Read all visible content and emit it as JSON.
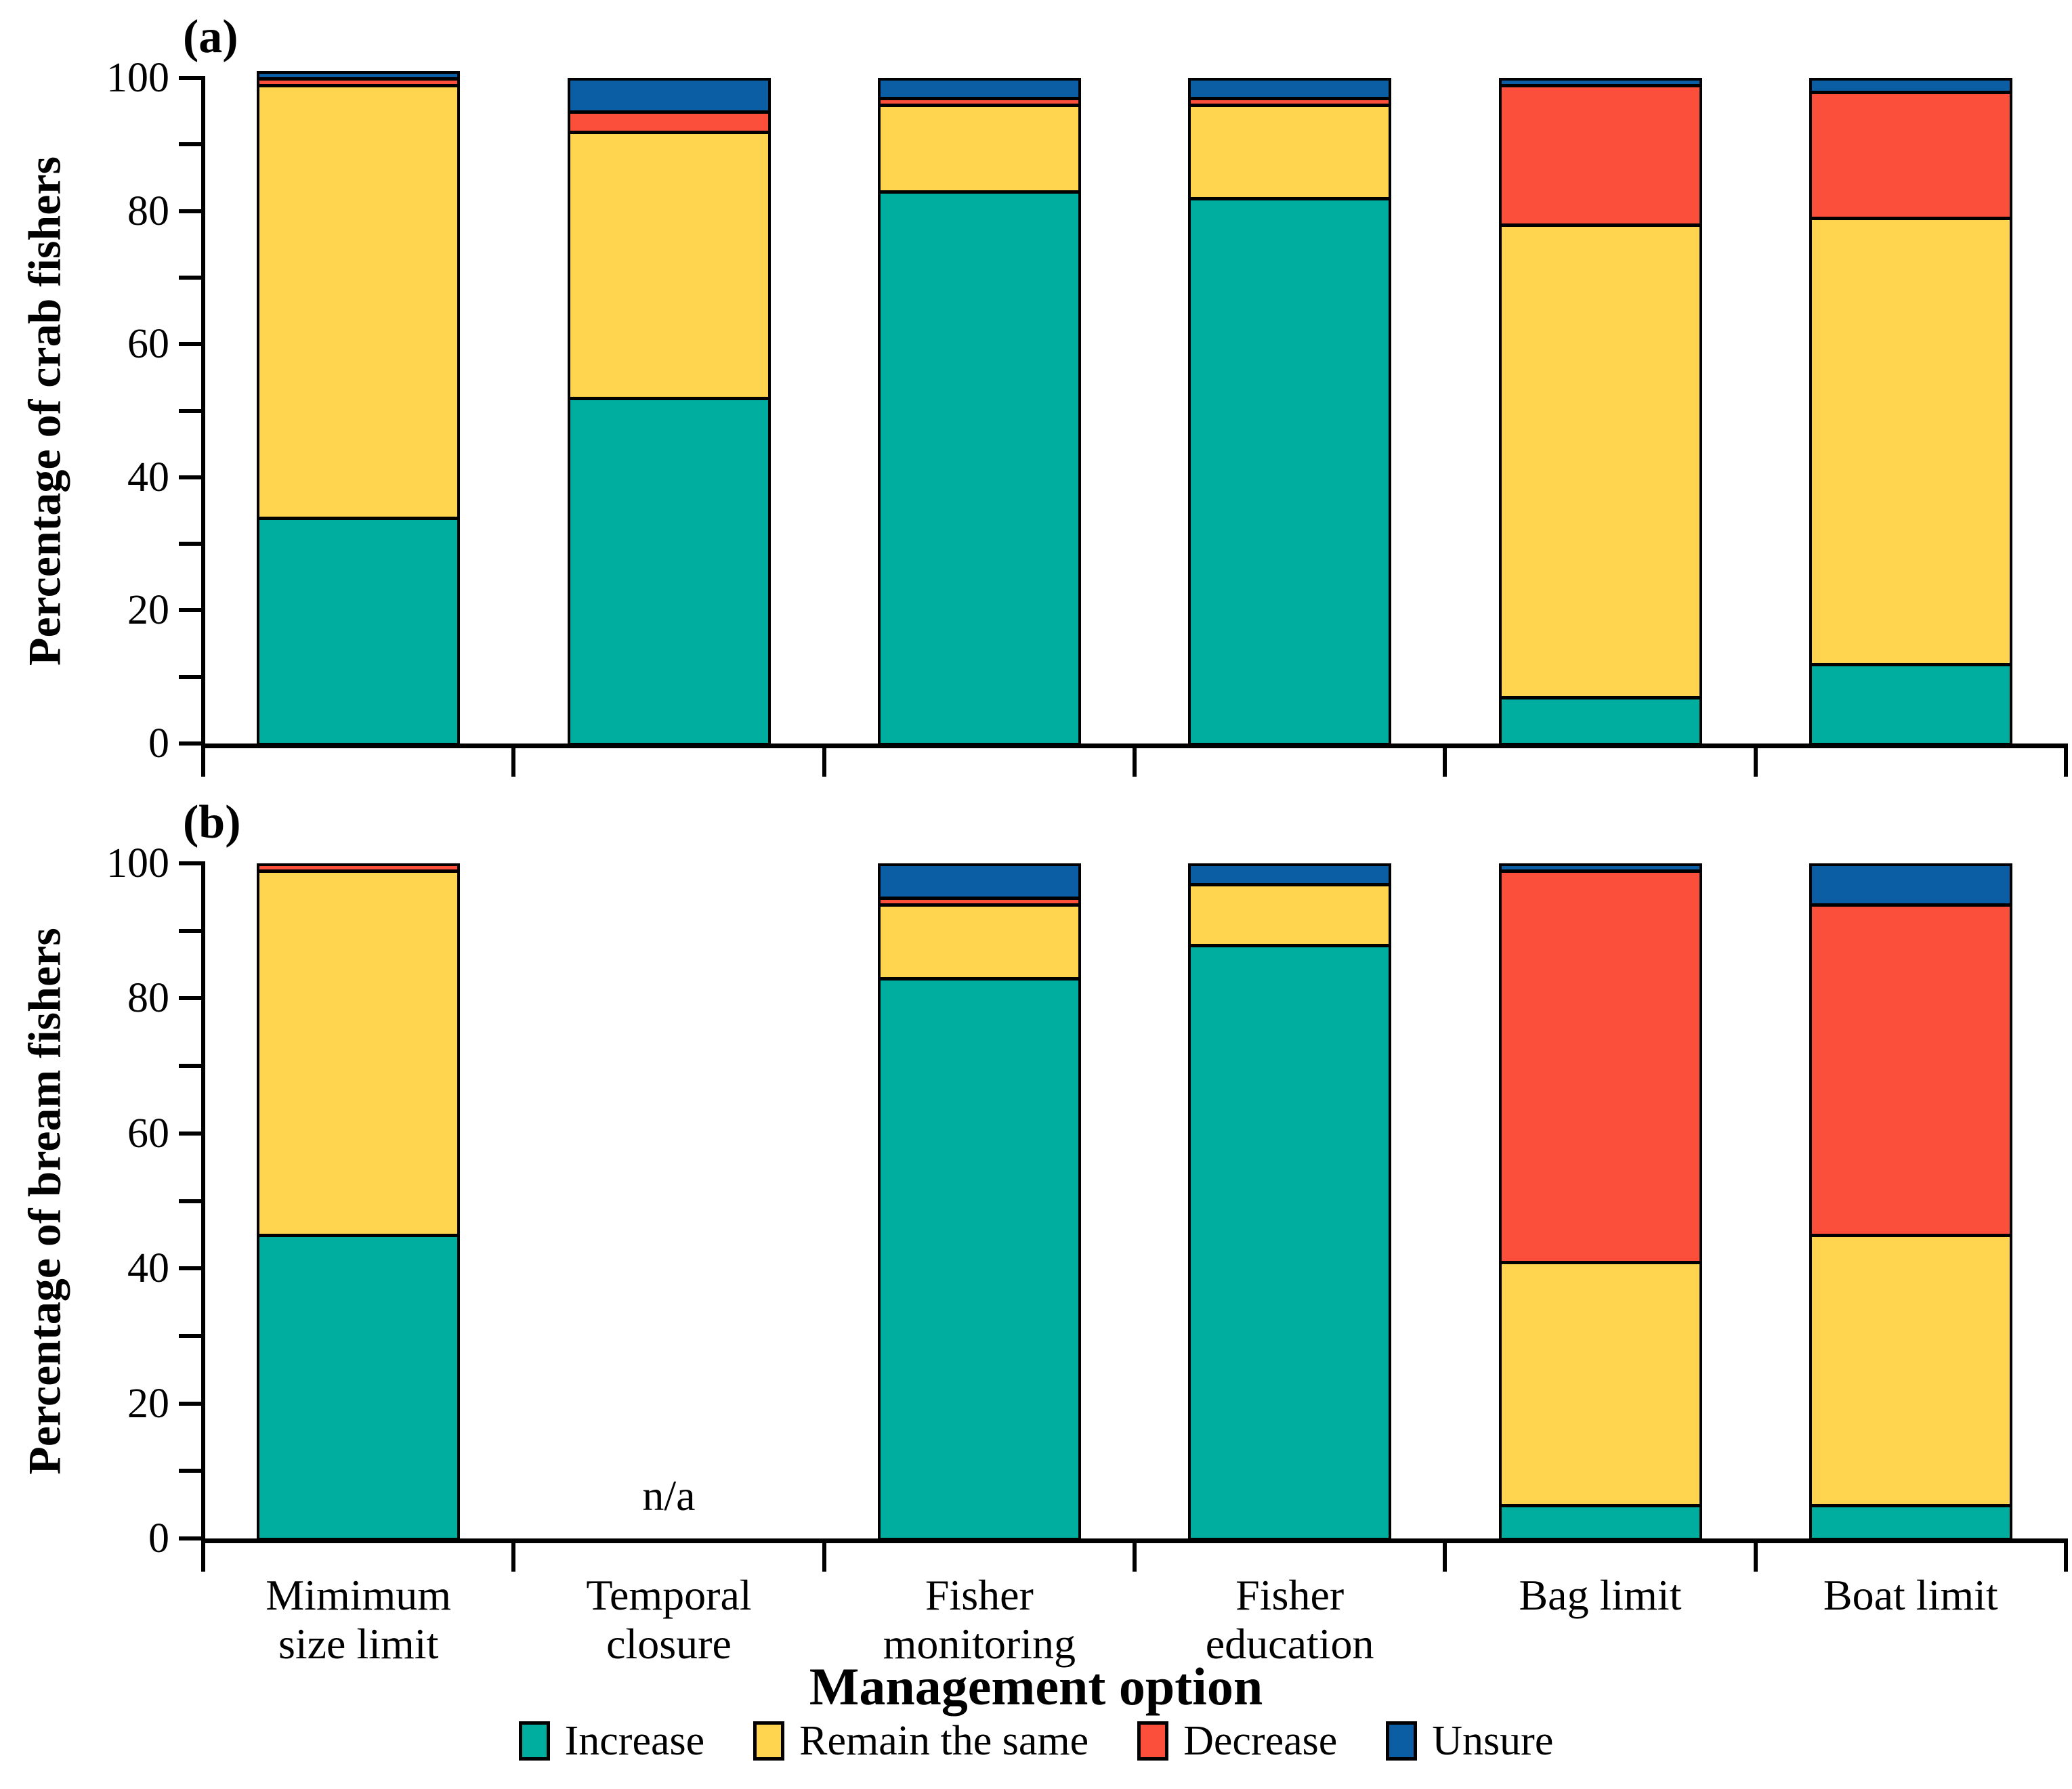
{
  "figure": {
    "x_axis_title": "Management option",
    "na_text": "n/a"
  },
  "chart_data": {
    "type": "bar",
    "stacked": true,
    "grid": false,
    "ylim": [
      0,
      100
    ],
    "y_major_ticks": [
      0,
      20,
      40,
      60,
      80,
      100
    ],
    "y_minor_ticks": [
      10,
      30,
      50,
      70,
      90
    ],
    "xlabel": "Management option",
    "legend_position": "bottom-center",
    "legend": [
      "Increase",
      "Remain the same",
      "Decrease",
      "Unsure"
    ],
    "colors": {
      "increase": "#00AEA0",
      "remain_the_same": "#FFD44E",
      "decrease": "#FB4F3C",
      "unsure": "#0B5EA3",
      "outline": "#000000"
    },
    "categories": [
      [
        "Mimimum",
        "size limit"
      ],
      [
        "Temporal",
        "closure"
      ],
      [
        "Fisher",
        "monitoring"
      ],
      [
        "Fisher",
        "education"
      ],
      [
        "Bag limit"
      ],
      [
        "Boat limit"
      ]
    ],
    "panels": [
      {
        "tag": "(a)",
        "ylabel": "Percentage of crab fishers",
        "series": [
          {
            "name": "Increase",
            "values": [
              34,
              52,
              83,
              82,
              7,
              12
            ]
          },
          {
            "name": "Remain the same",
            "values": [
              65,
              40,
              13,
              14,
              71,
              67
            ]
          },
          {
            "name": "Decrease",
            "values": [
              1,
              3,
              1,
              1,
              21,
              19
            ]
          },
          {
            "name": "Unsure",
            "values": [
              1,
              5,
              3,
              3,
              1,
              2
            ]
          }
        ]
      },
      {
        "tag": "(b)",
        "ylabel": "Percentage of bream fishers",
        "na_category_index": 1,
        "series": [
          {
            "name": "Increase",
            "values": [
              45,
              null,
              83,
              88,
              5,
              5
            ]
          },
          {
            "name": "Remain the same",
            "values": [
              54,
              null,
              11,
              9,
              36,
              40
            ]
          },
          {
            "name": "Decrease",
            "values": [
              1,
              null,
              1,
              0,
              58,
              49
            ]
          },
          {
            "name": "Unsure",
            "values": [
              0,
              null,
              5,
              3,
              1,
              6
            ]
          }
        ]
      }
    ]
  }
}
